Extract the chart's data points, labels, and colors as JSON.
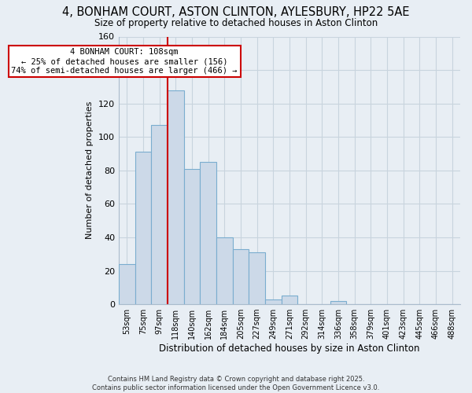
{
  "title": "4, BONHAM COURT, ASTON CLINTON, AYLESBURY, HP22 5AE",
  "subtitle": "Size of property relative to detached houses in Aston Clinton",
  "xlabel": "Distribution of detached houses by size in Aston Clinton",
  "ylabel": "Number of detached properties",
  "bar_color": "#ccd9e8",
  "bar_edge_color": "#7aadcf",
  "categories": [
    "53sqm",
    "75sqm",
    "97sqm",
    "118sqm",
    "140sqm",
    "162sqm",
    "184sqm",
    "205sqm",
    "227sqm",
    "249sqm",
    "271sqm",
    "292sqm",
    "314sqm",
    "336sqm",
    "358sqm",
    "379sqm",
    "401sqm",
    "423sqm",
    "445sqm",
    "466sqm",
    "488sqm"
  ],
  "values": [
    24,
    91,
    107,
    128,
    81,
    85,
    40,
    33,
    31,
    3,
    5,
    0,
    0,
    2,
    0,
    0,
    0,
    0,
    0,
    0,
    0
  ],
  "ylim": [
    0,
    160
  ],
  "yticks": [
    0,
    20,
    40,
    60,
    80,
    100,
    120,
    140,
    160
  ],
  "vline_color": "#cc0000",
  "vline_x_index": 2.5,
  "annotation_text": "4 BONHAM COURT: 108sqm\n← 25% of detached houses are smaller (156)\n74% of semi-detached houses are larger (466) →",
  "annotation_box_color": "white",
  "annotation_box_edge": "#cc0000",
  "footer": "Contains HM Land Registry data © Crown copyright and database right 2025.\nContains public sector information licensed under the Open Government Licence v3.0.",
  "background_color": "#e8eef4",
  "grid_color": "#c8d4de"
}
